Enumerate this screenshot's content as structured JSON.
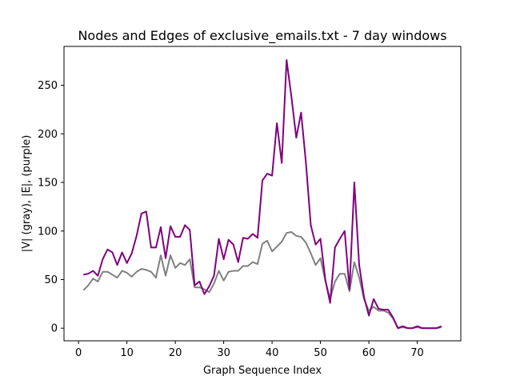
{
  "chart_data": {
    "type": "line",
    "title": "Nodes and Edges of exclusive_emails.txt - 7 day windows",
    "xlabel": "Graph Sequence Index",
    "ylabel": "|V| (gray), |E|, (purple)",
    "xlim": [
      -3,
      79
    ],
    "ylim": [
      -13,
      290
    ],
    "xticks": [
      0,
      10,
      20,
      30,
      40,
      50,
      60,
      70
    ],
    "yticks": [
      0,
      50,
      100,
      150,
      200,
      250
    ],
    "grid": false,
    "x": [
      1,
      2,
      3,
      4,
      5,
      6,
      7,
      8,
      9,
      10,
      11,
      12,
      13,
      14,
      15,
      16,
      17,
      18,
      19,
      20,
      21,
      22,
      23,
      24,
      25,
      26,
      27,
      28,
      29,
      30,
      31,
      32,
      33,
      34,
      35,
      36,
      37,
      38,
      39,
      40,
      41,
      42,
      43,
      44,
      45,
      46,
      47,
      48,
      49,
      50,
      51,
      52,
      53,
      54,
      55,
      56,
      57,
      58,
      59,
      60,
      61,
      62,
      63,
      64,
      65,
      66,
      67,
      68,
      69,
      70,
      71,
      72,
      73,
      74,
      75
    ],
    "series": [
      {
        "color": "#808080",
        "values": [
          39,
          44,
          51,
          48,
          58,
          58,
          55,
          52,
          59,
          57,
          53,
          58,
          61,
          60,
          58,
          52,
          75,
          54,
          75,
          62,
          67,
          65,
          71,
          42,
          42,
          40,
          37,
          46,
          59,
          49,
          58,
          59,
          59,
          64,
          64,
          68,
          66,
          87,
          90,
          79,
          84,
          89,
          98,
          99,
          95,
          94,
          88,
          77,
          65,
          72,
          49,
          30,
          48,
          56,
          56,
          38,
          68,
          52,
          30,
          18,
          22,
          18,
          18,
          16,
          10,
          0,
          1,
          0,
          0,
          1,
          0,
          0,
          0,
          0,
          1
        ]
      },
      {
        "color": "#800080",
        "values": [
          55,
          56,
          59,
          54,
          71,
          81,
          78,
          65,
          78,
          67,
          77,
          95,
          118,
          120,
          83,
          83,
          104,
          72,
          105,
          94,
          94,
          106,
          101,
          44,
          48,
          35,
          43,
          54,
          92,
          71,
          91,
          86,
          68,
          93,
          92,
          97,
          93,
          152,
          159,
          157,
          211,
          170,
          276,
          238,
          196,
          222,
          170,
          106,
          86,
          92,
          50,
          26,
          83,
          92,
          100,
          40,
          150,
          65,
          32,
          13,
          30,
          20,
          19,
          19,
          11,
          0,
          2,
          0,
          0,
          2,
          0,
          0,
          0,
          0,
          2
        ]
      }
    ]
  }
}
